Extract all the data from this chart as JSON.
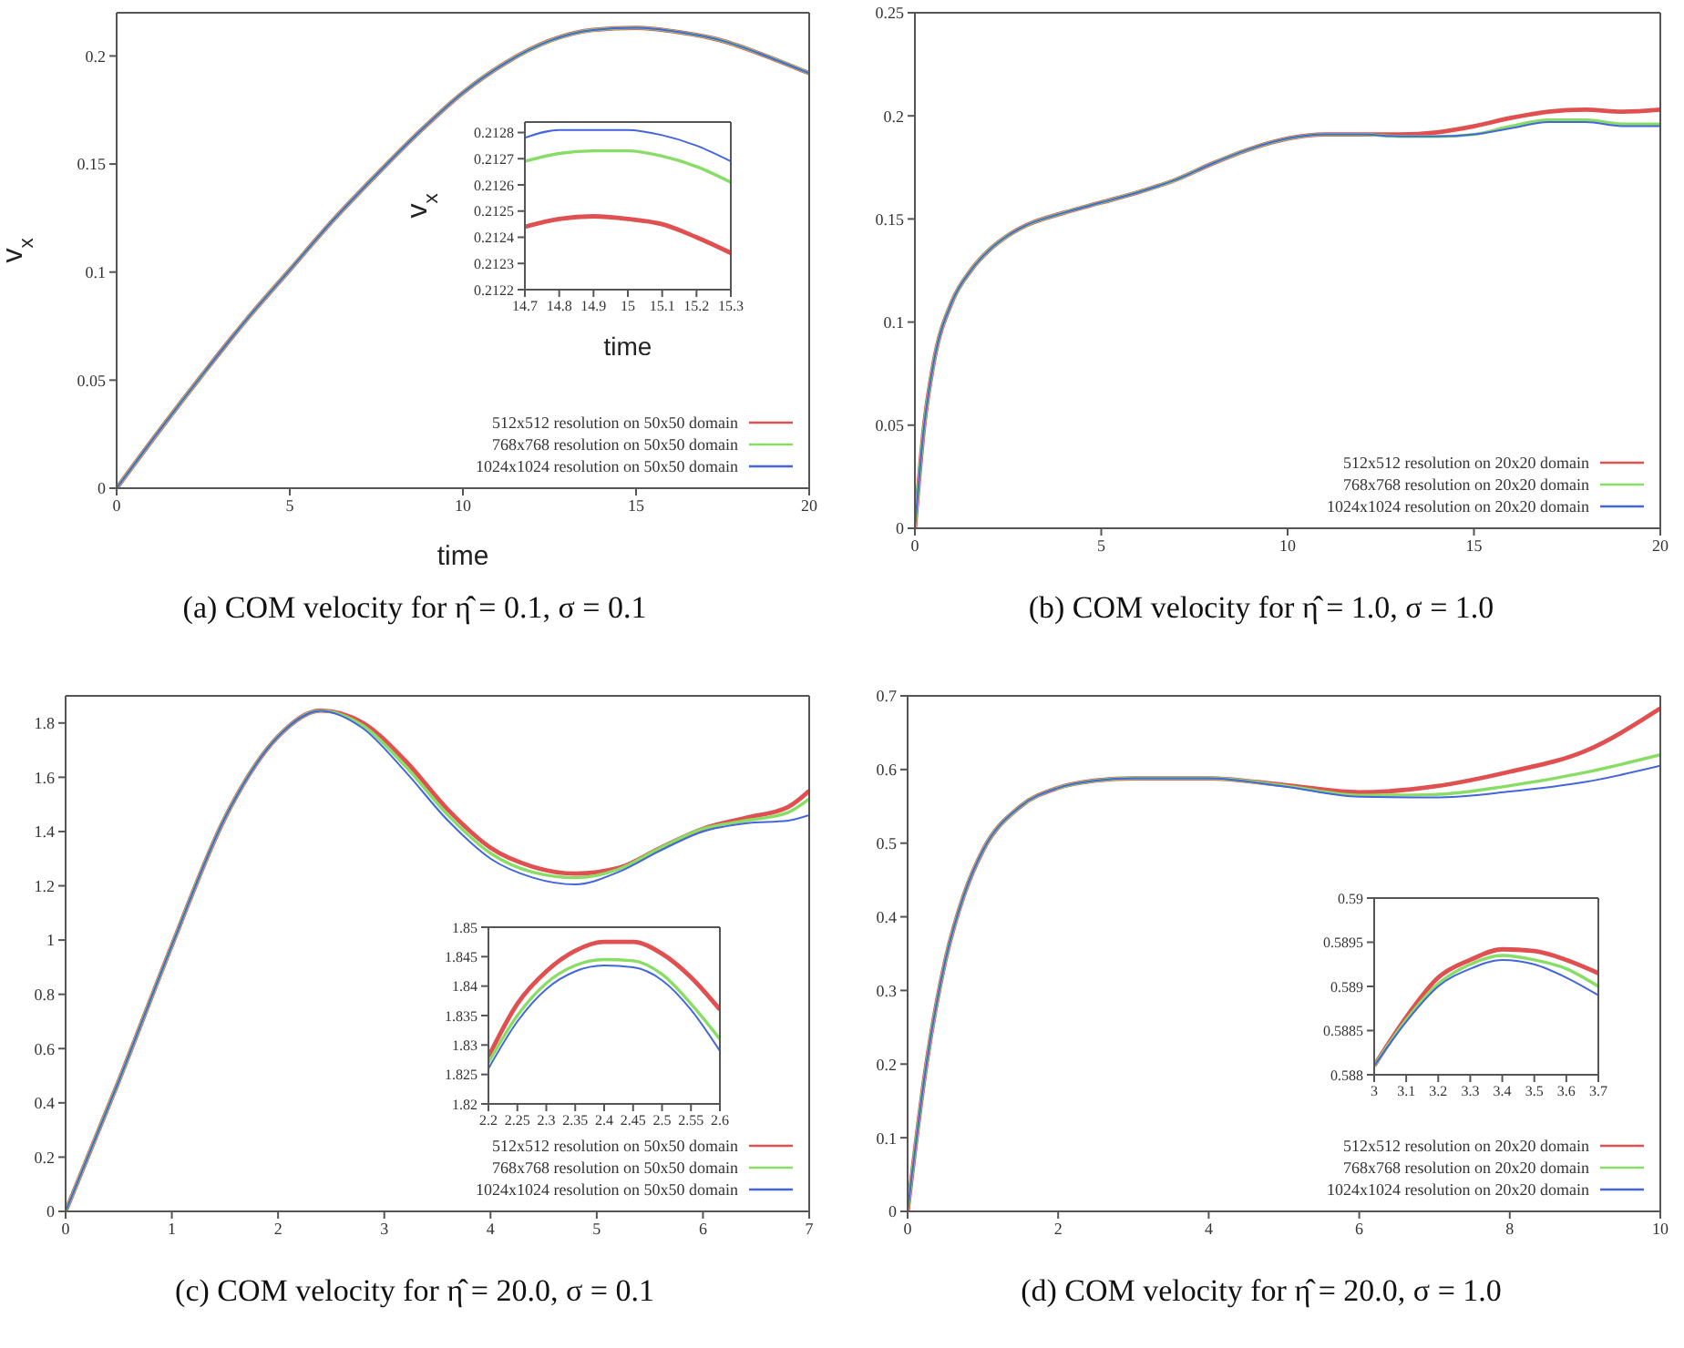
{
  "chart_data": [
    {
      "type": "line",
      "title": "(a) COM velocity for η̂ = 0.1, σ = 0.1",
      "xlabel": "time",
      "ylabel": "v$_{x}$",
      "legend": "bottom right",
      "xlim": [
        0,
        20
      ],
      "xticks": [
        0,
        5,
        10,
        15,
        20
      ],
      "ylim": [
        0,
        0.22
      ],
      "yticks": [
        0,
        0.05,
        0.1,
        0.15,
        0.2
      ],
      "x": [
        0,
        1.25,
        2.5,
        3.75,
        5,
        6.25,
        7.5,
        8.75,
        10,
        11.25,
        12.5,
        13.75,
        15,
        16.25,
        17.5,
        18.75,
        20
      ],
      "series": [
        {
          "name": "512x512 resolution on 50x50 domain",
          "color": "#e05050",
          "values": [
            0,
            0.027,
            0.053,
            0.078,
            0.101,
            0.124,
            0.145,
            0.165,
            0.183,
            0.197,
            0.207,
            0.212,
            0.213,
            0.211,
            0.207,
            0.2,
            0.192
          ]
        },
        {
          "name": "768x768 resolution on 50x50 domain",
          "color": "#88dd66",
          "values": [
            0,
            0.027,
            0.053,
            0.078,
            0.101,
            0.124,
            0.145,
            0.165,
            0.183,
            0.197,
            0.207,
            0.212,
            0.213,
            0.211,
            0.207,
            0.2,
            0.192
          ]
        },
        {
          "name": "1024x1024 resolution on 50x50 domain",
          "color": "#4466dd",
          "values": [
            0,
            0.027,
            0.053,
            0.078,
            0.101,
            0.124,
            0.145,
            0.165,
            0.183,
            0.197,
            0.207,
            0.212,
            0.213,
            0.211,
            0.207,
            0.2,
            0.192
          ]
        }
      ]
    },
    {
      "type": "line",
      "xlabel": "time",
      "ylabel": "v$_{x}$",
      "xlim": [
        14.7,
        15.3
      ],
      "xticks": [
        14.7,
        14.8,
        14.9,
        15,
        15.1,
        15.2,
        15.3
      ],
      "ylim": [
        0.2122,
        0.21284
      ],
      "yticks": [
        0.2122,
        0.2123,
        0.2124,
        0.2125,
        0.2126,
        0.2127,
        0.2128
      ],
      "x": [
        14.7,
        14.8,
        14.9,
        15,
        15.1,
        15.2,
        15.3
      ],
      "series": [
        {
          "color": "#e05050",
          "values": [
            0.21244,
            0.21247,
            0.21248,
            0.21247,
            0.21245,
            0.2124,
            0.21234
          ]
        },
        {
          "color": "#88dd66",
          "values": [
            0.21269,
            0.21272,
            0.21273,
            0.21273,
            0.21271,
            0.21267,
            0.21261
          ]
        },
        {
          "color": "#4466dd",
          "values": [
            0.21278,
            0.21281,
            0.21281,
            0.21281,
            0.21279,
            0.21275,
            0.21269
          ]
        }
      ]
    },
    {
      "type": "line",
      "title": "(b) COM velocity for η̂ = 1.0, σ = 1.0",
      "legend": "bottom right",
      "xlim": [
        0,
        20
      ],
      "xticks": [
        0,
        5,
        10,
        15,
        20
      ],
      "ylim": [
        0,
        0.25
      ],
      "yticks": [
        0,
        0.05,
        0.1,
        0.15,
        0.2,
        0.25
      ],
      "x": [
        0,
        0.25,
        0.5,
        1,
        1.5,
        2,
        2.5,
        3,
        4,
        5,
        6,
        7,
        8,
        9,
        10,
        11,
        12,
        13,
        14,
        15,
        16,
        17,
        18,
        19,
        20
      ],
      "series": [
        {
          "name": "512x512 resolution on 20x20 domain",
          "color": "#e05050",
          "values": [
            0,
            0.05,
            0.08,
            0.11,
            0.125,
            0.135,
            0.142,
            0.147,
            0.153,
            0.158,
            0.163,
            0.169,
            0.177,
            0.184,
            0.189,
            0.191,
            0.191,
            0.191,
            0.192,
            0.195,
            0.199,
            0.202,
            0.203,
            0.202,
            0.203
          ]
        },
        {
          "name": "768x768 resolution on 20x20 domain",
          "color": "#88dd66",
          "values": [
            0,
            0.05,
            0.08,
            0.11,
            0.125,
            0.135,
            0.142,
            0.147,
            0.153,
            0.158,
            0.163,
            0.169,
            0.177,
            0.184,
            0.189,
            0.191,
            0.191,
            0.19,
            0.19,
            0.191,
            0.195,
            0.198,
            0.198,
            0.196,
            0.196
          ]
        },
        {
          "name": "1024x1024 resolution on 20x20 domain",
          "color": "#4466dd",
          "values": [
            0,
            0.05,
            0.08,
            0.11,
            0.125,
            0.135,
            0.142,
            0.147,
            0.153,
            0.158,
            0.163,
            0.169,
            0.177,
            0.184,
            0.189,
            0.191,
            0.191,
            0.19,
            0.19,
            0.191,
            0.194,
            0.197,
            0.197,
            0.195,
            0.195
          ]
        }
      ]
    },
    {
      "type": "line",
      "title": "(c) COM velocity for η̂ = 20.0, σ = 0.1",
      "legend": "bottom right",
      "xlim": [
        0,
        7
      ],
      "xticks": [
        0,
        1,
        2,
        3,
        4,
        5,
        6,
        7
      ],
      "ylim": [
        0,
        1.9
      ],
      "yticks": [
        0,
        0.2,
        0.4,
        0.6,
        0.8,
        1,
        1.2,
        1.4,
        1.6,
        1.8
      ],
      "x": [
        0,
        0.5,
        1,
        1.5,
        2,
        2.4,
        2.8,
        3.2,
        3.6,
        4,
        4.4,
        4.8,
        5.2,
        5.6,
        6,
        6.4,
        6.8,
        7
      ],
      "series": [
        {
          "name": "512x512 resolution on 50x50 domain",
          "color": "#e05050",
          "values": [
            0,
            0.48,
            0.98,
            1.45,
            1.75,
            1.846,
            1.8,
            1.66,
            1.48,
            1.34,
            1.27,
            1.245,
            1.265,
            1.34,
            1.41,
            1.45,
            1.49,
            1.55
          ]
        },
        {
          "name": "768x768 resolution on 50x50 domain",
          "color": "#88dd66",
          "values": [
            0,
            0.48,
            0.98,
            1.45,
            1.75,
            1.845,
            1.79,
            1.64,
            1.46,
            1.32,
            1.25,
            1.23,
            1.26,
            1.34,
            1.41,
            1.44,
            1.47,
            1.52
          ]
        },
        {
          "name": "1024x1024 resolution on 50x50 domain",
          "color": "#4466dd",
          "values": [
            0,
            0.48,
            0.98,
            1.45,
            1.75,
            1.845,
            1.78,
            1.62,
            1.44,
            1.3,
            1.23,
            1.205,
            1.25,
            1.33,
            1.4,
            1.43,
            1.44,
            1.46
          ]
        }
      ]
    },
    {
      "type": "line",
      "xlim": [
        2.2,
        2.6
      ],
      "xticks": [
        2.2,
        2.25,
        2.3,
        2.35,
        2.4,
        2.45,
        2.5,
        2.55,
        2.6
      ],
      "ylim": [
        1.82,
        1.85
      ],
      "yticks": [
        1.82,
        1.825,
        1.83,
        1.835,
        1.84,
        1.845,
        1.85
      ],
      "x": [
        2.2,
        2.25,
        2.3,
        2.35,
        2.4,
        2.45,
        2.5,
        2.55,
        2.6
      ],
      "series": [
        {
          "color": "#e05050",
          "values": [
            1.828,
            1.837,
            1.8425,
            1.846,
            1.8475,
            1.8475,
            1.8455,
            1.8415,
            1.836
          ]
        },
        {
          "color": "#88dd66",
          "values": [
            1.827,
            1.835,
            1.8405,
            1.8435,
            1.8445,
            1.8443,
            1.842,
            1.837,
            1.831
          ]
        },
        {
          "color": "#4466dd",
          "values": [
            1.826,
            1.834,
            1.8395,
            1.8425,
            1.8435,
            1.8432,
            1.841,
            1.836,
            1.829
          ]
        }
      ]
    },
    {
      "type": "line",
      "title": "(d) COM velocity for η̂ = 20.0, σ = 1.0",
      "legend": "bottom right",
      "xlim": [
        0,
        10
      ],
      "xticks": [
        0,
        2,
        4,
        6,
        8,
        10
      ],
      "ylim": [
        0,
        0.7
      ],
      "yticks": [
        0,
        0.1,
        0.2,
        0.3,
        0.4,
        0.5,
        0.6,
        0.7
      ],
      "x": [
        0,
        0.25,
        0.5,
        0.75,
        1,
        1.5,
        2,
        2.5,
        3,
        4,
        5,
        6,
        7,
        8,
        9,
        10
      ],
      "series": [
        {
          "name": "512x512 resolution on 20x20 domain",
          "color": "#e05050",
          "values": [
            0,
            0.2,
            0.34,
            0.43,
            0.49,
            0.55,
            0.575,
            0.585,
            0.588,
            0.588,
            0.579,
            0.569,
            0.577,
            0.597,
            0.625,
            0.683
          ]
        },
        {
          "name": "768x768 resolution on 20x20 domain",
          "color": "#88dd66",
          "values": [
            0,
            0.2,
            0.34,
            0.43,
            0.49,
            0.55,
            0.575,
            0.585,
            0.588,
            0.588,
            0.578,
            0.565,
            0.566,
            0.578,
            0.596,
            0.62
          ]
        },
        {
          "name": "1024x1024 resolution on 20x20 domain",
          "color": "#4466dd",
          "values": [
            0,
            0.2,
            0.34,
            0.43,
            0.49,
            0.55,
            0.575,
            0.585,
            0.588,
            0.588,
            0.577,
            0.563,
            0.562,
            0.57,
            0.583,
            0.605
          ]
        }
      ]
    },
    {
      "type": "line",
      "xlim": [
        3,
        3.7
      ],
      "xticks": [
        3,
        3.1,
        3.2,
        3.3,
        3.4,
        3.5,
        3.6,
        3.7
      ],
      "ylim": [
        0.588,
        0.59
      ],
      "yticks": [
        0.588,
        0.5885,
        0.589,
        0.5895,
        0.59
      ],
      "x": [
        3,
        3.1,
        3.2,
        3.3,
        3.4,
        3.5,
        3.6,
        3.7
      ],
      "series": [
        {
          "color": "#e05050",
          "values": [
            0.5881,
            0.58865,
            0.5891,
            0.5893,
            0.58942,
            0.5894,
            0.5893,
            0.58915
          ]
        },
        {
          "color": "#88dd66",
          "values": [
            0.5881,
            0.58862,
            0.58903,
            0.58925,
            0.58935,
            0.5893,
            0.5892,
            0.589
          ]
        },
        {
          "color": "#4466dd",
          "values": [
            0.5881,
            0.5886,
            0.589,
            0.5892,
            0.5893,
            0.58925,
            0.5891,
            0.5889
          ]
        }
      ]
    }
  ]
}
